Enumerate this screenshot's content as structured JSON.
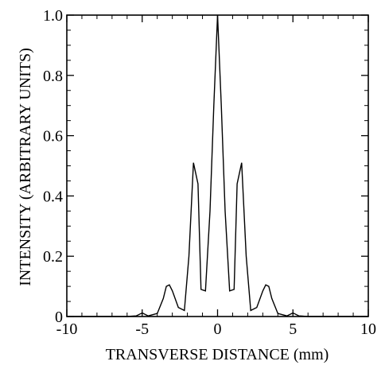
{
  "chart_data": {
    "type": "line",
    "title": "",
    "xlabel": "TRANSVERSE DISTANCE (mm)",
    "ylabel": "INTENSITY (ARBITRARY UNITS)",
    "xlim": [
      -10,
      10
    ],
    "ylim": [
      0,
      1.0
    ],
    "x_ticks": [
      -10,
      -5,
      0,
      5,
      10
    ],
    "x_tick_labels": [
      "-10",
      "-5",
      "0",
      "5",
      "10"
    ],
    "y_ticks": [
      0,
      0.2,
      0.4,
      0.6,
      0.8,
      1.0
    ],
    "y_tick_labels": [
      "0",
      "0.2",
      "0.4",
      "0.6",
      "0.8",
      "1.0"
    ],
    "grid": false,
    "legend": "none",
    "line_color": "#000000",
    "series": [
      {
        "x": [
          -10,
          -6,
          -5.4,
          -5,
          -4.6,
          -4,
          -3.6,
          -3.4,
          -3.2,
          -3.0,
          -2.6,
          -2.2,
          -1.9,
          -1.6,
          -1.3,
          -1.1,
          -0.8,
          -0.5,
          -0.25,
          0,
          0.25,
          0.5,
          0.8,
          1.1,
          1.3,
          1.6,
          1.9,
          2.2,
          2.6,
          3.0,
          3.2,
          3.4,
          3.6,
          4,
          4.6,
          5,
          5.4,
          6,
          10
        ],
        "y": [
          0,
          0,
          0.002,
          0.012,
          0.002,
          0.01,
          0.06,
          0.1,
          0.105,
          0.085,
          0.03,
          0.02,
          0.2,
          0.51,
          0.44,
          0.09,
          0.085,
          0.35,
          0.7,
          1.0,
          0.7,
          0.35,
          0.085,
          0.09,
          0.44,
          0.51,
          0.2,
          0.02,
          0.03,
          0.085,
          0.105,
          0.1,
          0.06,
          0.01,
          0.002,
          0.012,
          0.002,
          0,
          0
        ]
      }
    ]
  }
}
